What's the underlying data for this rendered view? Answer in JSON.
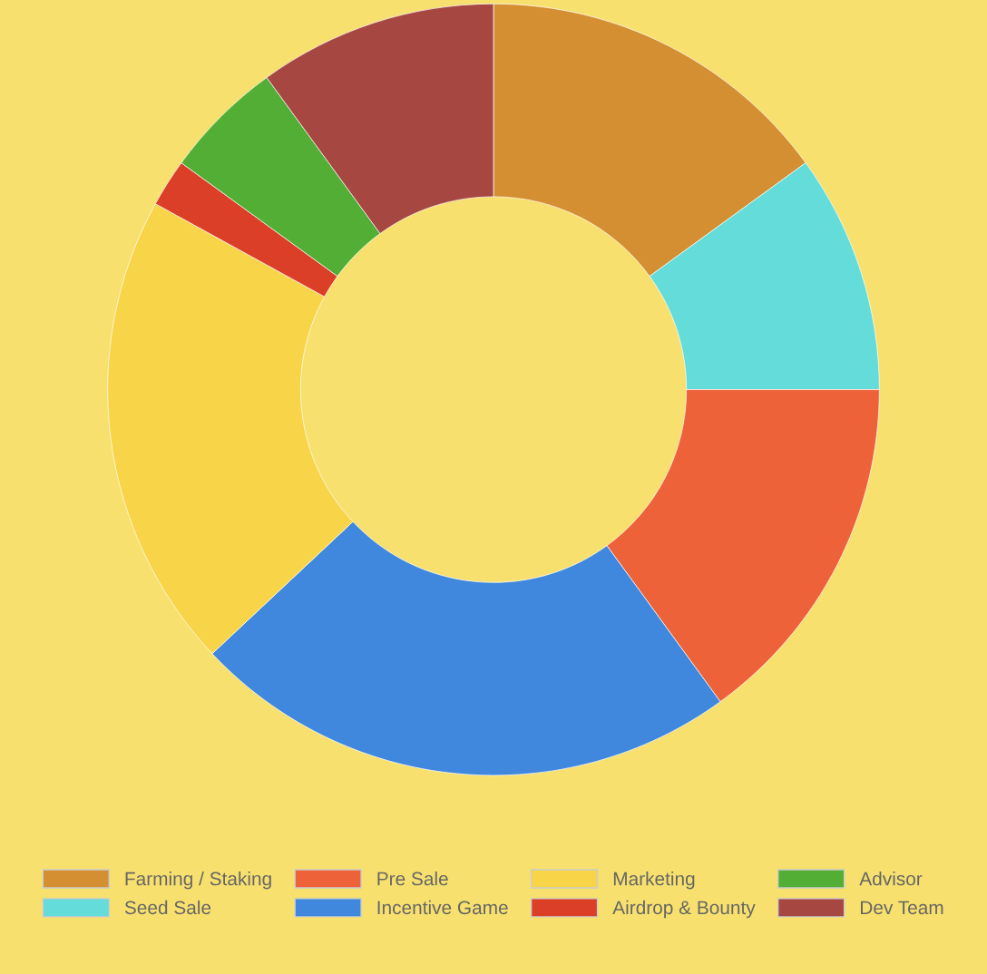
{
  "chart_data": {
    "type": "donut",
    "categories": [
      "Farming / Staking",
      "Seed Sale",
      "Pre Sale",
      "Incentive Game",
      "Marketing",
      "Airdrop & Bounty",
      "Advisor",
      "Dev Team"
    ],
    "values": [
      15,
      10,
      15,
      23,
      20,
      2,
      5,
      10
    ],
    "colors": [
      "#d48f33",
      "#64dcd9",
      "#ee623a",
      "#3f88de",
      "#f7d448",
      "#dc3f28",
      "#53ae35",
      "#a64742"
    ],
    "legend": "bottom"
  }
}
